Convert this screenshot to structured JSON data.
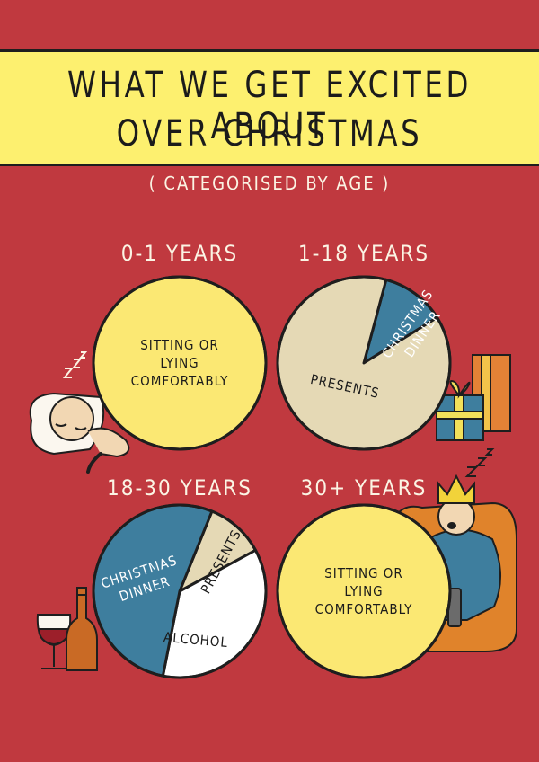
{
  "title_line1": "WHAT WE GET EXCITED ABOUT",
  "title_line2": "OVER CHRISTMAS",
  "subtitle": "( CATEGORISED BY AGE )",
  "colors": {
    "background": "#c0393f",
    "banner": "#fdf06f",
    "yellow": "#fbe873",
    "beige": "#e5d9b5",
    "blue": "#3e7e9e",
    "white": "#ffffff",
    "outline": "#1e1e1e",
    "label_light": "#fbf4e4"
  },
  "illustrations": [
    "sleeping-baby",
    "zzz",
    "gift-boxes",
    "wine-glass",
    "wine-bottle",
    "man-in-armchair",
    "paper-crown",
    "tv-remote"
  ],
  "chart_data": [
    {
      "type": "pie",
      "title": "0-1 YEARS",
      "slices": [
        {
          "label": "SITTING OR LYING COMFORTABLY",
          "value": 100,
          "color": "#fbe873"
        }
      ]
    },
    {
      "type": "pie",
      "title": "1-18 YEARS",
      "slices": [
        {
          "label": "CHRISTMAS DINNER",
          "value": 12,
          "color": "#3e7e9e"
        },
        {
          "label": "PRESENTS",
          "value": 88,
          "color": "#e5d9b5"
        }
      ]
    },
    {
      "type": "pie",
      "title": "18-30 YEARS",
      "slices": [
        {
          "label": "PRESENTS",
          "value": 11,
          "color": "#e5d9b5"
        },
        {
          "label": "ALCOHOL",
          "value": 36,
          "color": "#ffffff"
        },
        {
          "label": "CHRISTMAS DINNER",
          "value": 53,
          "color": "#3e7e9e"
        }
      ]
    },
    {
      "type": "pie",
      "title": "30+ YEARS",
      "slices": [
        {
          "label": "SITTING OR LYING COMFORTABLY",
          "value": 100,
          "color": "#fbe873"
        }
      ]
    }
  ]
}
